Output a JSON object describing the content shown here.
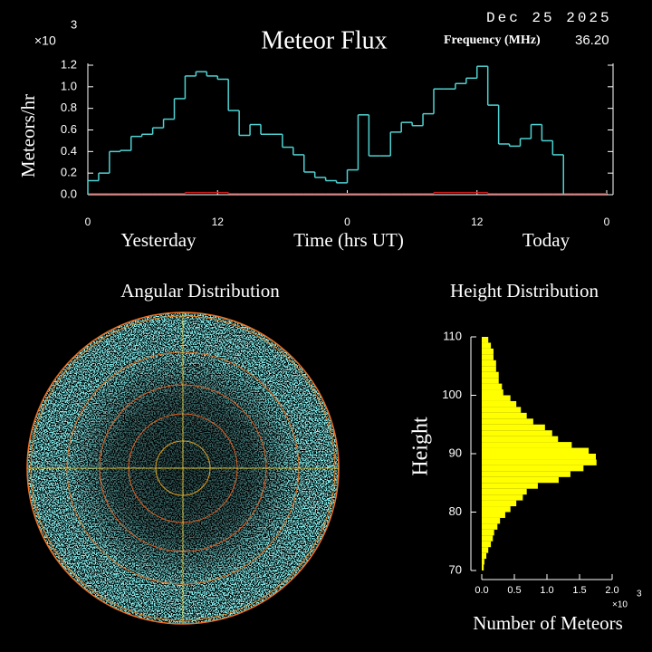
{
  "chart_data": [
    {
      "type": "line",
      "title": "Meteor Flux",
      "date": "Dec 25 2025",
      "frequency_label": "Frequency (MHz)",
      "frequency": "36.20",
      "y_label": "Meteors/hr",
      "y_scale_label": "×10",
      "y_scale_exponent": "3",
      "x_label": "Time (hrs UT)",
      "x_period_labels": [
        "Yesterday",
        "Today"
      ],
      "step": true,
      "x": [
        0,
        1,
        2,
        3,
        4,
        5,
        6,
        7,
        8,
        9,
        10,
        11,
        12,
        13,
        14,
        15,
        16,
        17,
        18,
        19,
        20,
        21,
        22,
        23,
        24,
        25,
        26,
        27,
        28,
        29,
        30,
        31,
        32,
        33,
        34,
        35,
        36,
        37,
        38,
        39,
        40,
        41,
        42,
        43,
        44,
        45,
        46,
        47
      ],
      "series": [
        {
          "color": "#4fd2d2",
          "values": [
            0.13,
            0.2,
            0.4,
            0.41,
            0.54,
            0.56,
            0.62,
            0.7,
            0.89,
            1.1,
            1.14,
            1.1,
            1.07,
            0.78,
            0.55,
            0.65,
            0.56,
            0.56,
            0.44,
            0.37,
            0.21,
            0.16,
            0.13,
            0.11,
            0.23,
            0.74,
            0.36,
            0.36,
            0.58,
            0.67,
            0.64,
            0.75,
            0.98,
            0.98,
            1.03,
            1.08,
            1.19,
            0.83,
            0.47,
            0.45,
            0.52,
            0.65,
            0.5,
            0.37,
            null,
            null,
            null,
            null
          ]
        },
        {
          "color": "#d01818",
          "values": [
            0.01,
            0.01,
            0.01,
            0.01,
            0.01,
            0.01,
            0.01,
            0.01,
            0.01,
            0.02,
            0.02,
            0.02,
            0.02,
            0.01,
            0.01,
            0.01,
            0.01,
            0.01,
            0.01,
            0.01,
            0.01,
            0.01,
            0.01,
            0.01,
            0.01,
            0.01,
            0.01,
            0.01,
            0.01,
            0.01,
            0.01,
            0.01,
            0.02,
            0.02,
            0.02,
            0.02,
            0.02,
            0.01,
            0.01,
            0.01,
            0.01,
            0.01,
            0.01,
            0.01,
            0.01,
            0.01,
            0.01,
            0.01
          ]
        }
      ],
      "xlim": [
        0,
        48
      ],
      "xticks": [
        0,
        12,
        {
          "value": 24,
          "label": "0"
        },
        {
          "value": 36,
          "label": "12"
        },
        {
          "value": 48,
          "label": "0"
        }
      ],
      "ylim": [
        0,
        1.2
      ],
      "yticks": [
        {
          "value": 0,
          "label": "0.0"
        },
        0.2,
        0.4,
        0.6,
        0.8,
        {
          "value": 1,
          "label": "1.0"
        },
        1.2
      ]
    },
    {
      "type": "polar",
      "title": "Angular Distribution"
    },
    {
      "type": "histogram",
      "orientation": "horizontal",
      "title": "Height Distribution",
      "y_label": "Height",
      "x_label": "Number of Meteors",
      "x_scale_label": "×10",
      "x_scale_exponent": "3",
      "color": "#ffff00",
      "bins": [
        70,
        71,
        72,
        73,
        74,
        75,
        76,
        77,
        78,
        79,
        80,
        81,
        82,
        83,
        84,
        85,
        86,
        87,
        88,
        89,
        90,
        91,
        92,
        93,
        94,
        95,
        96,
        97,
        98,
        99,
        100,
        101,
        102,
        103,
        104,
        105,
        106,
        107,
        108,
        109,
        110
      ],
      "values": [
        0.03,
        0.04,
        0.07,
        0.1,
        0.14,
        0.17,
        0.19,
        0.24,
        0.28,
        0.36,
        0.44,
        0.53,
        0.63,
        0.69,
        0.86,
        1.18,
        1.36,
        1.56,
        1.76,
        1.75,
        1.64,
        1.38,
        1.17,
        1.08,
        0.97,
        0.79,
        0.69,
        0.6,
        0.53,
        0.44,
        0.33,
        0.31,
        0.26,
        0.26,
        0.22,
        0.22,
        0.18,
        0.18,
        0.14,
        0.1
      ],
      "xlim": [
        0,
        2
      ],
      "xticks": [
        {
          "value": 0,
          "label": "0.0"
        },
        0.5,
        {
          "value": 1,
          "label": "1.0"
        },
        1.5,
        {
          "value": 2,
          "label": "2.0"
        }
      ],
      "ylim": [
        70,
        110
      ],
      "yticks": [
        70,
        80,
        90,
        100,
        110
      ]
    }
  ]
}
